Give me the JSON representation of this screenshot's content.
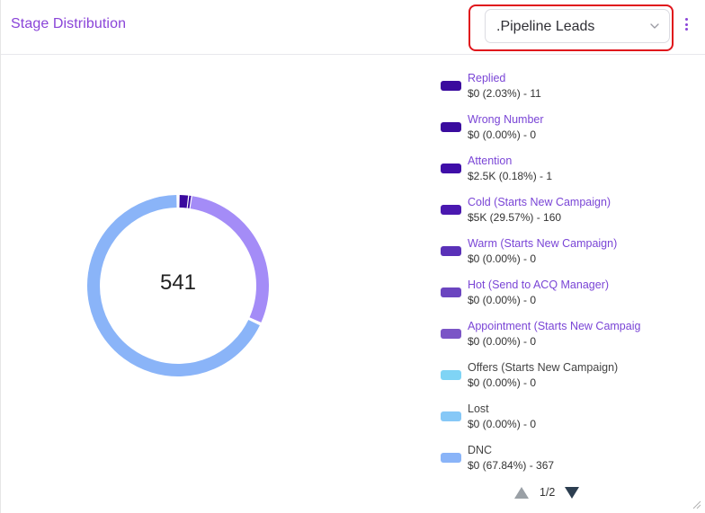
{
  "header": {
    "title": "Stage Distribution",
    "pipeline_select": {
      "selected": ".Pipeline Leads"
    }
  },
  "chart_data": {
    "type": "pie",
    "style": "donut",
    "center_label": "541",
    "slices": [
      {
        "name": "Replied",
        "value_text": "$0 (2.03%) - 11",
        "count": 11,
        "percent": 2.03,
        "color": "#3b0a9e"
      },
      {
        "name": "Wrong Number",
        "value_text": "$0 (0.00%) - 0",
        "count": 0,
        "percent": 0.0,
        "color": "#3a0c9e"
      },
      {
        "name": "Attention",
        "value_text": "$2.5K (0.18%) - 1",
        "count": 1,
        "percent": 0.18,
        "color": "#3f0ea8"
      },
      {
        "name": "Cold (Starts New Campaign)",
        "value_text": "$5K (29.57%) - 160",
        "count": 160,
        "percent": 29.57,
        "color": "#a48cf7"
      },
      {
        "name": "Warm (Starts New Campaign)",
        "value_text": "$0 (0.00%) - 0",
        "count": 0,
        "percent": 0.0,
        "color": "#5a31b8"
      },
      {
        "name": "Hot (Send to ACQ Manager)",
        "value_text": "$0 (0.00%) - 0",
        "count": 0,
        "percent": 0.0,
        "color": "#6b45c0"
      },
      {
        "name": "Appointment (Starts New Campaign)",
        "value_text": "$0 (0.00%) - 0",
        "count": 0,
        "percent": 0.0,
        "color": "#7b55c6"
      },
      {
        "name": "Offers (Starts New Campaign)",
        "value_text": "$0 (0.00%) - 0",
        "count": 0,
        "percent": 0.0,
        "color": "#7fd4f5"
      },
      {
        "name": "Lost",
        "value_text": "$0 (0.00%) - 0",
        "count": 0,
        "percent": 0.0,
        "color": "#86c8f7"
      },
      {
        "name": "DNC",
        "value_text": "$0 (67.84%) - 367",
        "count": 367,
        "percent": 67.84,
        "color": "#8ab4f8"
      }
    ]
  },
  "legend": {
    "items": [
      {
        "label": "Replied",
        "value": "$0 (2.03%) - 11",
        "color": "#3b0a9e",
        "label_style": "purple"
      },
      {
        "label": "Wrong Number",
        "value": "$0 (0.00%) - 0",
        "color": "#3a0c9e",
        "label_style": "purple"
      },
      {
        "label": "Attention",
        "value": "$2.5K (0.18%) - 1",
        "color": "#3f0ea8",
        "label_style": "purple"
      },
      {
        "label": "Cold (Starts New Campaign)",
        "value": "$5K (29.57%) - 160",
        "color": "#4a18b0",
        "label_style": "purple"
      },
      {
        "label": "Warm (Starts New Campaign)",
        "value": "$0 (0.00%) - 0",
        "color": "#5a31b8",
        "label_style": "purple"
      },
      {
        "label": "Hot (Send to ACQ Manager)",
        "value": "$0 (0.00%) - 0",
        "color": "#6b45c0",
        "label_style": "purple"
      },
      {
        "label": "Appointment (Starts New Campaig",
        "value": "$0 (0.00%) - 0",
        "color": "#7b55c6",
        "label_style": "purple"
      },
      {
        "label": "Offers (Starts New Campaign)",
        "value": "$0 (0.00%) - 0",
        "color": "#7fd4f5",
        "label_style": "gray"
      },
      {
        "label": "Lost",
        "value": "$0 (0.00%) - 0",
        "color": "#86c8f7",
        "label_style": "gray"
      },
      {
        "label": "DNC",
        "value": "$0 (67.84%) - 367",
        "color": "#8ab4f8",
        "label_style": "gray"
      }
    ],
    "pager": {
      "text": "1/2"
    }
  },
  "icons": {
    "select_chevron": "chevron-down-icon",
    "menu": "kebab-menu-icon",
    "pager_up": "triangle-up-icon",
    "pager_down": "triangle-down-icon",
    "resize": "resize-handle-icon"
  },
  "colors": {
    "title": "#8a44d8",
    "highlight_box": "#e0141b"
  }
}
